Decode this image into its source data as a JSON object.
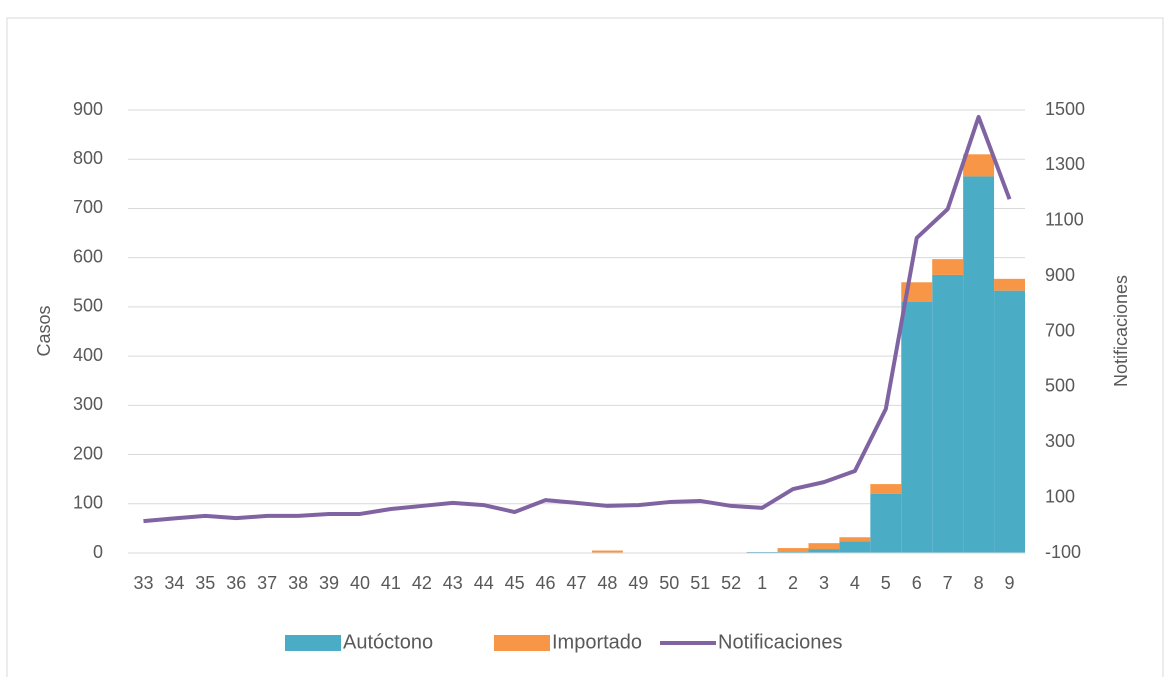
{
  "chart_data": {
    "type": "bar",
    "stacked": true,
    "categories": [
      "33",
      "34",
      "35",
      "36",
      "37",
      "38",
      "39",
      "40",
      "41",
      "42",
      "43",
      "44",
      "45",
      "46",
      "47",
      "48",
      "49",
      "50",
      "51",
      "52",
      "1",
      "2",
      "3",
      "4",
      "5",
      "6",
      "7",
      "8",
      "9"
    ],
    "y_label": "Casos",
    "y2_label": "Notificaciones",
    "ylim": [
      0,
      900
    ],
    "yticks": [
      0,
      100,
      200,
      300,
      400,
      500,
      600,
      700,
      800,
      900
    ],
    "y2lim": [
      -100,
      1500
    ],
    "y2ticks": [
      -100,
      100,
      300,
      500,
      700,
      900,
      1100,
      1300,
      1500
    ],
    "grid": true,
    "legend": "bottom",
    "series": [
      {
        "name": "Autóctono",
        "type": "bar",
        "color": "#4bacc6",
        "values": [
          0,
          0,
          0,
          0,
          0,
          0,
          0,
          1,
          0,
          0,
          0,
          1,
          0,
          0,
          0,
          0,
          0,
          0,
          0,
          1,
          2,
          2,
          8,
          24,
          120,
          510,
          565,
          765,
          533
        ]
      },
      {
        "name": "Importado",
        "type": "bar",
        "color": "#f79646",
        "values": [
          0,
          0,
          0,
          0,
          0,
          0,
          0,
          0,
          0,
          0,
          0,
          0,
          0,
          0,
          0,
          5,
          0,
          0,
          0,
          0,
          0,
          8,
          12,
          8,
          20,
          40,
          32,
          45,
          24
        ]
      },
      {
        "name": "Notificaciones",
        "type": "line",
        "axis": "y2",
        "color": "#8064a2",
        "values": [
          15,
          25,
          34,
          26,
          34,
          34,
          41,
          41,
          59,
          70,
          81,
          73,
          48,
          91,
          81,
          70,
          73,
          84,
          88,
          70,
          63,
          131,
          156,
          196,
          420,
          1038,
          1142,
          1475,
          1178
        ]
      }
    ]
  }
}
